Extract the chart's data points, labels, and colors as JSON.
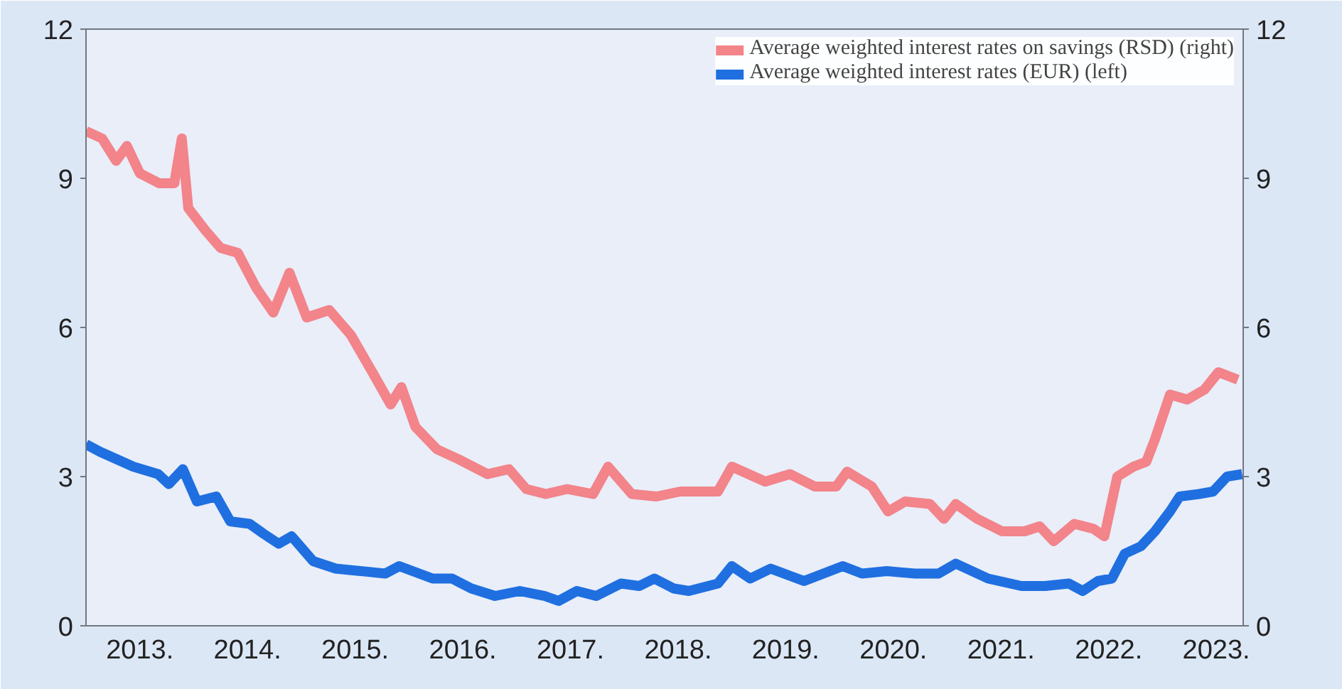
{
  "chart_data": {
    "type": "line",
    "xlim": [
      2013,
      2023.75
    ],
    "xticks": [
      {
        "value": 2013.5,
        "label": "2013."
      },
      {
        "value": 2014.5,
        "label": "2014."
      },
      {
        "value": 2015.5,
        "label": "2015."
      },
      {
        "value": 2016.5,
        "label": "2016."
      },
      {
        "value": 2017.5,
        "label": "2017."
      },
      {
        "value": 2018.5,
        "label": "2018."
      },
      {
        "value": 2019.5,
        "label": "2019."
      },
      {
        "value": 2020.5,
        "label": "2020."
      },
      {
        "value": 2021.5,
        "label": "2021."
      },
      {
        "value": 2022.5,
        "label": "2022."
      },
      {
        "value": 2023.5,
        "label": "2023."
      }
    ],
    "ylim": [
      0,
      12
    ],
    "yticks": [
      0,
      3,
      6,
      9,
      12
    ],
    "y2lim": [
      0,
      12
    ],
    "y2ticks": [
      0,
      3,
      6,
      9,
      12
    ],
    "grid": false,
    "legend": "top right",
    "marker": "none",
    "line_style": "solid",
    "series": [
      {
        "name": "Average weighted interest rates on savings (RSD) (right)",
        "color": "#f2848a",
        "axis": "y2",
        "x": [
          2013.0,
          2013.15,
          2013.28,
          2013.38,
          2013.5,
          2013.68,
          2013.82,
          2013.89,
          2013.95,
          2014.11,
          2014.25,
          2014.41,
          2014.58,
          2014.74,
          2014.89,
          2015.05,
          2015.26,
          2015.46,
          2015.66,
          2015.83,
          2015.93,
          2016.06,
          2016.26,
          2016.46,
          2016.73,
          2016.93,
          2017.09,
          2017.27,
          2017.47,
          2017.71,
          2017.85,
          2018.07,
          2018.3,
          2018.52,
          2018.87,
          2019.0,
          2019.31,
          2019.54,
          2019.77,
          2019.97,
          2020.07,
          2020.3,
          2020.45,
          2020.61,
          2020.84,
          2020.97,
          2021.08,
          2021.28,
          2021.51,
          2021.72,
          2021.86,
          2021.99,
          2022.18,
          2022.36,
          2022.46,
          2022.58,
          2022.73,
          2022.85,
          2022.93,
          2023.07,
          2023.23,
          2023.39,
          2023.52,
          2023.7
        ],
        "values": [
          9.95,
          9.8,
          9.35,
          9.65,
          9.1,
          8.9,
          8.9,
          9.8,
          8.4,
          7.95,
          7.6,
          7.5,
          6.8,
          6.3,
          7.1,
          6.2,
          6.35,
          5.85,
          5.1,
          4.45,
          4.8,
          4.0,
          3.55,
          3.35,
          3.05,
          3.15,
          2.75,
          2.65,
          2.75,
          2.65,
          3.2,
          2.65,
          2.6,
          2.7,
          2.7,
          3.2,
          2.9,
          3.05,
          2.8,
          2.8,
          3.1,
          2.8,
          2.3,
          2.5,
          2.45,
          2.15,
          2.45,
          2.15,
          1.9,
          1.9,
          2.0,
          1.7,
          2.05,
          1.95,
          1.8,
          3.0,
          3.2,
          3.3,
          3.75,
          4.65,
          4.55,
          4.75,
          5.1,
          4.95
        ]
      },
      {
        "name": "Average weighted interest rates (EUR) (left)",
        "color": "#1f6fe0",
        "x": [
          2013.0,
          2013.13,
          2013.44,
          2013.67,
          2013.77,
          2013.9,
          2014.03,
          2014.21,
          2014.34,
          2014.52,
          2014.65,
          2014.79,
          2014.91,
          2015.11,
          2015.32,
          2015.55,
          2015.78,
          2015.91,
          2016.22,
          2016.4,
          2016.58,
          2016.8,
          2017.03,
          2017.26,
          2017.39,
          2017.56,
          2017.74,
          2017.97,
          2018.14,
          2018.28,
          2018.46,
          2018.6,
          2018.87,
          2019.0,
          2019.17,
          2019.36,
          2019.67,
          2020.03,
          2020.21,
          2020.44,
          2020.7,
          2020.92,
          2021.08,
          2021.38,
          2021.69,
          2021.91,
          2022.13,
          2022.26,
          2022.4,
          2022.53,
          2022.65,
          2022.8,
          2022.93,
          2023.07,
          2023.16,
          2023.34,
          2023.47,
          2023.6,
          2023.74
        ],
        "values": [
          3.65,
          3.5,
          3.2,
          3.05,
          2.85,
          3.15,
          2.5,
          2.6,
          2.1,
          2.05,
          1.85,
          1.65,
          1.8,
          1.3,
          1.15,
          1.1,
          1.05,
          1.2,
          0.95,
          0.95,
          0.75,
          0.6,
          0.7,
          0.6,
          0.5,
          0.7,
          0.6,
          0.85,
          0.8,
          0.95,
          0.75,
          0.7,
          0.85,
          1.2,
          0.95,
          1.15,
          0.9,
          1.2,
          1.05,
          1.1,
          1.05,
          1.05,
          1.25,
          0.95,
          0.8,
          0.8,
          0.85,
          0.7,
          0.9,
          0.95,
          1.45,
          1.6,
          1.9,
          2.3,
          2.6,
          2.65,
          2.7,
          3.0,
          3.05
        ]
      }
    ]
  }
}
